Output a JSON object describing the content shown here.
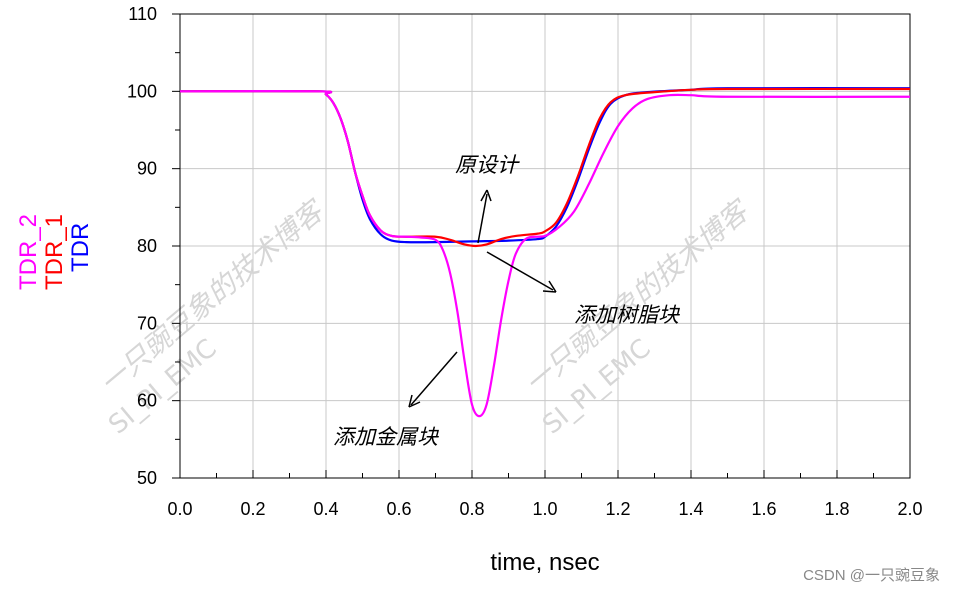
{
  "chart_data": {
    "type": "line",
    "xlabel": "time, nsec",
    "xlim": [
      0.0,
      2.0
    ],
    "ylim": [
      50,
      110
    ],
    "x_ticks": [
      "0.0",
      "0.2",
      "0.4",
      "0.6",
      "0.8",
      "1.0",
      "1.2",
      "1.4",
      "1.6",
      "1.8",
      "2.0"
    ],
    "y_ticks": [
      "50",
      "60",
      "70",
      "80",
      "90",
      "100",
      "110"
    ],
    "grid": true,
    "series": [
      {
        "name": "TDR",
        "color": "#0000ff",
        "points": [
          [
            0.0,
            100
          ],
          [
            0.38,
            100
          ],
          [
            0.4,
            99.6
          ],
          [
            0.42,
            98.5
          ],
          [
            0.44,
            96.5
          ],
          [
            0.46,
            93.5
          ],
          [
            0.48,
            89.5
          ],
          [
            0.5,
            86
          ],
          [
            0.52,
            83.5
          ],
          [
            0.55,
            81.5
          ],
          [
            0.58,
            80.7
          ],
          [
            0.62,
            80.5
          ],
          [
            0.7,
            80.5
          ],
          [
            0.8,
            80.6
          ],
          [
            0.9,
            80.7
          ],
          [
            0.98,
            80.9
          ],
          [
            1.0,
            81.2
          ],
          [
            1.03,
            82.5
          ],
          [
            1.06,
            85
          ],
          [
            1.09,
            88.5
          ],
          [
            1.12,
            92.5
          ],
          [
            1.15,
            96
          ],
          [
            1.18,
            98.4
          ],
          [
            1.22,
            99.5
          ],
          [
            1.28,
            99.9
          ],
          [
            1.4,
            100.2
          ],
          [
            1.5,
            100.4
          ],
          [
            2.0,
            100.4
          ]
        ]
      },
      {
        "name": "TDR_1",
        "color": "#ff0000",
        "points": [
          [
            0.0,
            100
          ],
          [
            0.38,
            100
          ],
          [
            0.4,
            99.6
          ],
          [
            0.42,
            98.5
          ],
          [
            0.44,
            96.5
          ],
          [
            0.46,
            93.5
          ],
          [
            0.48,
            89.5
          ],
          [
            0.5,
            86.5
          ],
          [
            0.52,
            84
          ],
          [
            0.55,
            82
          ],
          [
            0.58,
            81.3
          ],
          [
            0.62,
            81.2
          ],
          [
            0.7,
            81.2
          ],
          [
            0.74,
            80.8
          ],
          [
            0.78,
            80.2
          ],
          [
            0.81,
            80.0
          ],
          [
            0.84,
            80.2
          ],
          [
            0.88,
            80.9
          ],
          [
            0.92,
            81.3
          ],
          [
            0.98,
            81.6
          ],
          [
            1.0,
            81.9
          ],
          [
            1.03,
            83
          ],
          [
            1.06,
            85.5
          ],
          [
            1.09,
            89
          ],
          [
            1.12,
            93
          ],
          [
            1.15,
            96.5
          ],
          [
            1.18,
            98.6
          ],
          [
            1.22,
            99.5
          ],
          [
            1.3,
            99.9
          ],
          [
            1.4,
            100.2
          ],
          [
            1.5,
            100.3
          ],
          [
            2.0,
            100.3
          ]
        ]
      },
      {
        "name": "TDR_2",
        "color": "#ff00ff",
        "points": [
          [
            0.0,
            100
          ],
          [
            0.38,
            100
          ],
          [
            0.4,
            99.6
          ],
          [
            0.42,
            98.5
          ],
          [
            0.44,
            96.5
          ],
          [
            0.46,
            93.5
          ],
          [
            0.48,
            89.5
          ],
          [
            0.5,
            86.5
          ],
          [
            0.52,
            84
          ],
          [
            0.55,
            82
          ],
          [
            0.58,
            81.3
          ],
          [
            0.62,
            81.2
          ],
          [
            0.66,
            81.1
          ],
          [
            0.7,
            80.8
          ],
          [
            0.72,
            79.5
          ],
          [
            0.74,
            76.5
          ],
          [
            0.76,
            71.5
          ],
          [
            0.78,
            65
          ],
          [
            0.8,
            59.5
          ],
          [
            0.82,
            58
          ],
          [
            0.84,
            59.5
          ],
          [
            0.86,
            64.5
          ],
          [
            0.88,
            70.5
          ],
          [
            0.9,
            75.5
          ],
          [
            0.92,
            79
          ],
          [
            0.95,
            81
          ],
          [
            1.0,
            81.3
          ],
          [
            1.04,
            82.5
          ],
          [
            1.08,
            84.5
          ],
          [
            1.12,
            88
          ],
          [
            1.16,
            92
          ],
          [
            1.2,
            95.5
          ],
          [
            1.24,
            97.8
          ],
          [
            1.28,
            99
          ],
          [
            1.34,
            99.5
          ],
          [
            1.4,
            99.5
          ],
          [
            1.5,
            99.3
          ],
          [
            2.0,
            99.3
          ]
        ]
      }
    ],
    "legend_order_top_to_bottom": [
      "TDR_2",
      "TDR_1",
      "TDR"
    ],
    "annotations": [
      {
        "text": "原设计"
      },
      {
        "text": "添加树脂块"
      },
      {
        "text": "添加金属块"
      }
    ]
  },
  "watermark": {
    "line1": "一只豌豆象的技术博客",
    "line2": "SI_PI_EMC"
  },
  "credit": "CSDN @一只豌豆象"
}
